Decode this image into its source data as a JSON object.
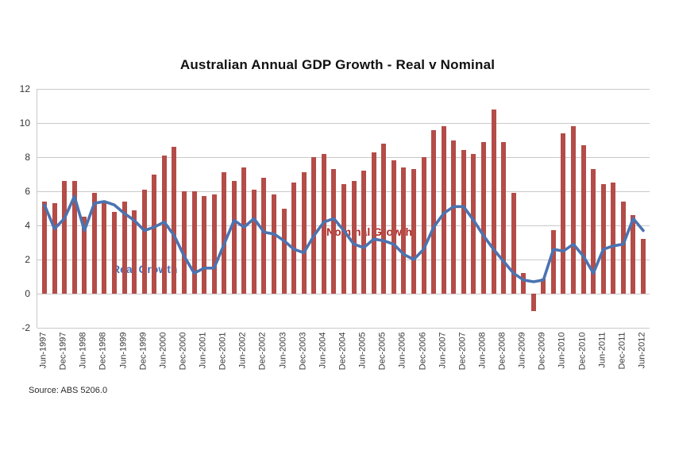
{
  "page": {
    "title": "Australian Annual GDP Growth - Real v Nominal",
    "source_note": "Source: ABS 5206.0"
  },
  "annotations": {
    "nominal": {
      "text": "Nominal Growth",
      "color": "#b02b28"
    },
    "real": {
      "text": "Real Growth",
      "color": "#3c6fbe"
    }
  },
  "chart_data": {
    "type": "combo-bar-line",
    "title": "Australian Annual GDP Growth - Real v Nominal",
    "xlabel": "",
    "ylabel": "",
    "ylim": [
      -2,
      12
    ],
    "ytick_step": 2,
    "xtick_every": 2,
    "grid": true,
    "legend_position": "in-plot text labels",
    "axis_color": "#c9c9c9",
    "categories": [
      "Jun-1997",
      "Sep-1997",
      "Dec-1997",
      "Mar-1998",
      "Jun-1998",
      "Sep-1998",
      "Dec-1998",
      "Mar-1999",
      "Jun-1999",
      "Sep-1999",
      "Dec-1999",
      "Mar-2000",
      "Jun-2000",
      "Sep-2000",
      "Dec-2000",
      "Mar-2001",
      "Jun-2001",
      "Sep-2001",
      "Dec-2001",
      "Mar-2002",
      "Jun-2002",
      "Sep-2002",
      "Dec-2002",
      "Mar-2003",
      "Jun-2003",
      "Sep-2003",
      "Dec-2003",
      "Mar-2004",
      "Jun-2004",
      "Sep-2004",
      "Dec-2004",
      "Mar-2005",
      "Jun-2005",
      "Sep-2005",
      "Dec-2005",
      "Mar-2006",
      "Jun-2006",
      "Sep-2006",
      "Dec-2006",
      "Mar-2007",
      "Jun-2007",
      "Sep-2007",
      "Dec-2007",
      "Mar-2008",
      "Jun-2008",
      "Sep-2008",
      "Dec-2008",
      "Mar-2009",
      "Jun-2009",
      "Sep-2009",
      "Dec-2009",
      "Mar-2010",
      "Jun-2010",
      "Sep-2010",
      "Dec-2010",
      "Mar-2011",
      "Jun-2011",
      "Sep-2011",
      "Dec-2011",
      "Mar-2012",
      "Jun-2012"
    ],
    "series": [
      {
        "name": "Nominal Growth",
        "type": "bar",
        "color": "#b44c48",
        "values": [
          5.4,
          5.3,
          6.6,
          6.6,
          4.5,
          5.9,
          5.4,
          4.8,
          5.4,
          4.9,
          6.1,
          7.0,
          8.1,
          8.6,
          6.0,
          6.0,
          5.7,
          5.8,
          7.1,
          6.6,
          7.4,
          6.1,
          6.8,
          5.8,
          5.0,
          6.5,
          7.1,
          8.0,
          8.2,
          7.3,
          6.4,
          6.6,
          7.2,
          8.3,
          8.8,
          7.8,
          7.4,
          7.3,
          8.0,
          9.6,
          9.8,
          9.0,
          8.4,
          8.2,
          8.9,
          10.8,
          8.9,
          5.9,
          1.2,
          -1.0,
          0.9,
          3.7,
          9.4,
          9.8,
          8.7,
          7.3,
          6.4,
          6.5,
          5.4,
          4.6,
          3.2
        ]
      },
      {
        "name": "Real Growth",
        "type": "line",
        "color": "#4a73b1",
        "values": [
          5.2,
          3.8,
          4.4,
          5.7,
          3.7,
          5.3,
          5.4,
          5.2,
          4.7,
          4.3,
          3.7,
          3.9,
          4.2,
          3.4,
          2.2,
          1.2,
          1.5,
          1.5,
          2.9,
          4.3,
          3.9,
          4.4,
          3.6,
          3.5,
          3.1,
          2.6,
          2.4,
          3.4,
          4.2,
          4.4,
          3.7,
          2.9,
          2.7,
          3.2,
          3.1,
          2.9,
          2.3,
          2.0,
          2.6,
          3.9,
          4.7,
          5.1,
          5.1,
          4.3,
          3.4,
          2.6,
          1.9,
          1.2,
          0.8,
          0.7,
          0.8,
          2.6,
          2.5,
          2.9,
          2.2,
          1.2,
          2.6,
          2.8,
          2.9,
          4.4,
          3.7
        ]
      }
    ]
  }
}
